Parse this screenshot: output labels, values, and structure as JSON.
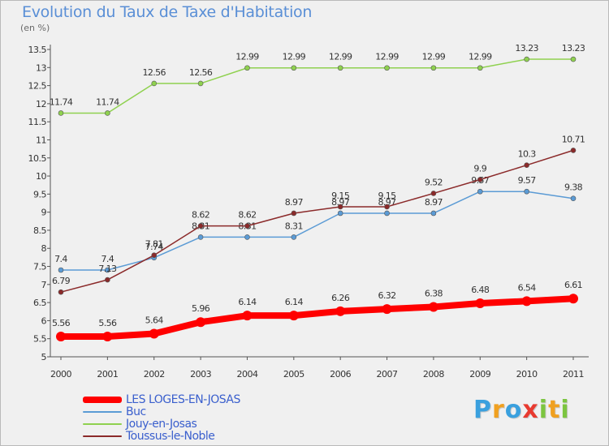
{
  "title": "Evolution du Taux de Taxe d'Habitation",
  "subtitle": "(en %)",
  "chart_data": {
    "type": "line",
    "title": "Evolution du Taux de Taxe d'Habitation",
    "subtitle": "(en %)",
    "xlabel": "",
    "ylabel": "",
    "x": [
      "2000",
      "2001",
      "2002",
      "2003",
      "2004",
      "2005",
      "2006",
      "2007",
      "2008",
      "2009",
      "2010",
      "2011"
    ],
    "ylim": [
      5,
      13.5
    ],
    "yticks": [
      "5",
      "5.5",
      "6",
      "6.5",
      "7",
      "7.5",
      "8",
      "8.5",
      "9",
      "9.5",
      "10",
      "10.5",
      "11",
      "11.5",
      "12",
      "12.5",
      "13",
      "13.5"
    ],
    "grid": false,
    "legend_position": "bottom-left",
    "series": [
      {
        "name": "LES LOGES-EN-JOSAS",
        "color": "#ff0000",
        "values": [
          5.56,
          5.56,
          5.64,
          5.96,
          6.14,
          6.14,
          6.26,
          6.32,
          6.38,
          6.48,
          6.54,
          6.61
        ],
        "labels": [
          "5.56",
          "5.56",
          "5.64",
          "5.96",
          "6.14",
          "6.14",
          "6.26",
          "6.32",
          "6.38",
          "6.48",
          "6.54",
          "6.61"
        ]
      },
      {
        "name": "Buc",
        "color": "#5b9bd5",
        "values": [
          7.4,
          7.4,
          7.74,
          8.31,
          8.31,
          8.31,
          8.97,
          8.97,
          8.97,
          9.57,
          9.57,
          9.38
        ],
        "labels": [
          "7.4",
          "7.4",
          "7.74",
          "8.31",
          "8.31",
          "8.31",
          "8.97",
          "8.97",
          "8.97",
          "9.57",
          "9.57",
          "9.38"
        ]
      },
      {
        "name": "Jouy-en-Josas",
        "color": "#8fd14f",
        "values": [
          11.74,
          11.74,
          12.56,
          12.56,
          12.99,
          12.99,
          12.99,
          12.99,
          12.99,
          12.99,
          13.23,
          13.23
        ],
        "labels": [
          "11.74",
          "11.74",
          "12.56",
          "12.56",
          "12.99",
          "12.99",
          "12.99",
          "12.99",
          "12.99",
          "12.99",
          "13.23",
          "13.23"
        ]
      },
      {
        "name": "Toussus-le-Noble",
        "color": "#8b2a2a",
        "values": [
          6.79,
          7.13,
          7.81,
          8.62,
          8.62,
          8.97,
          9.15,
          9.15,
          9.52,
          9.9,
          10.3,
          10.71
        ],
        "labels": [
          "6.79",
          "7.13",
          "7.81",
          "8.62",
          "8.62",
          "8.97",
          "9.15",
          "9.15",
          "9.52",
          "9.9",
          "10.3",
          "10.71"
        ]
      }
    ]
  },
  "logo": {
    "letters": [
      "P",
      "r",
      "o",
      "x",
      "i",
      "t",
      "i"
    ],
    "colors": [
      "#3aa0de",
      "#f0a020",
      "#3aa0de",
      "#e83a30",
      "#7cc540",
      "#f0a020",
      "#7cc540"
    ]
  }
}
